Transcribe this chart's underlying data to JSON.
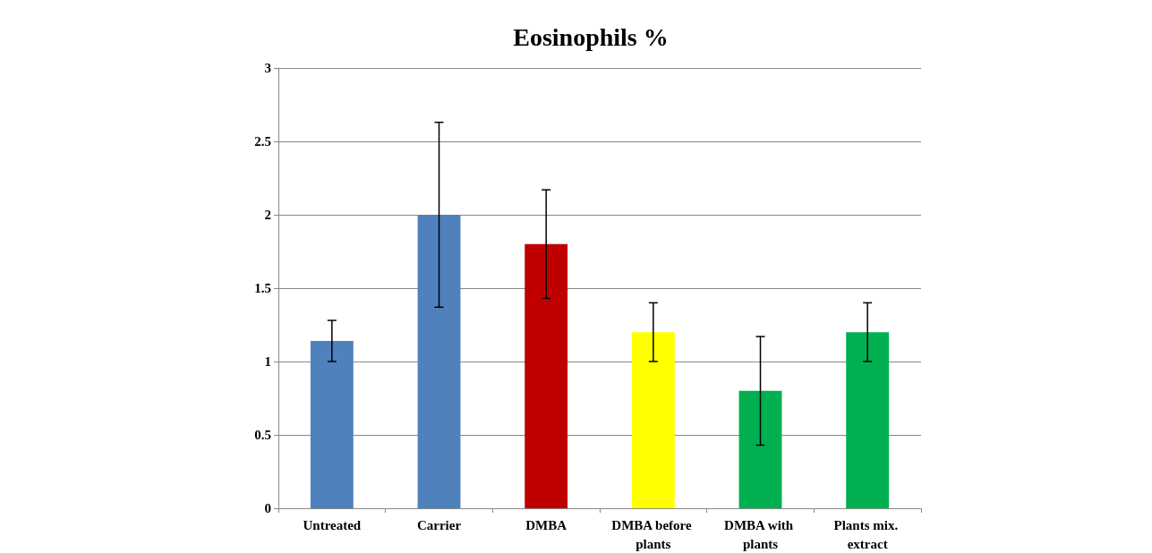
{
  "chart_data": {
    "type": "bar",
    "title": "Eosinophils %",
    "categories": [
      "Untreated",
      "Carrier",
      "DMBA",
      "DMBA before plants",
      "DMBA with plants",
      "Plants mix. extract"
    ],
    "values": [
      1.14,
      2.0,
      1.8,
      1.2,
      0.8,
      1.2
    ],
    "errors": [
      0.14,
      0.63,
      0.37,
      0.2,
      0.37,
      0.2
    ],
    "colors": [
      "#4f81bd",
      "#4f81bd",
      "#c00000",
      "#ffff00",
      "#00b050",
      "#00b050"
    ],
    "ylim": [
      0,
      3
    ],
    "yticks": [
      0,
      0.5,
      1,
      1.5,
      2,
      2.5,
      3
    ],
    "grid": "y"
  }
}
